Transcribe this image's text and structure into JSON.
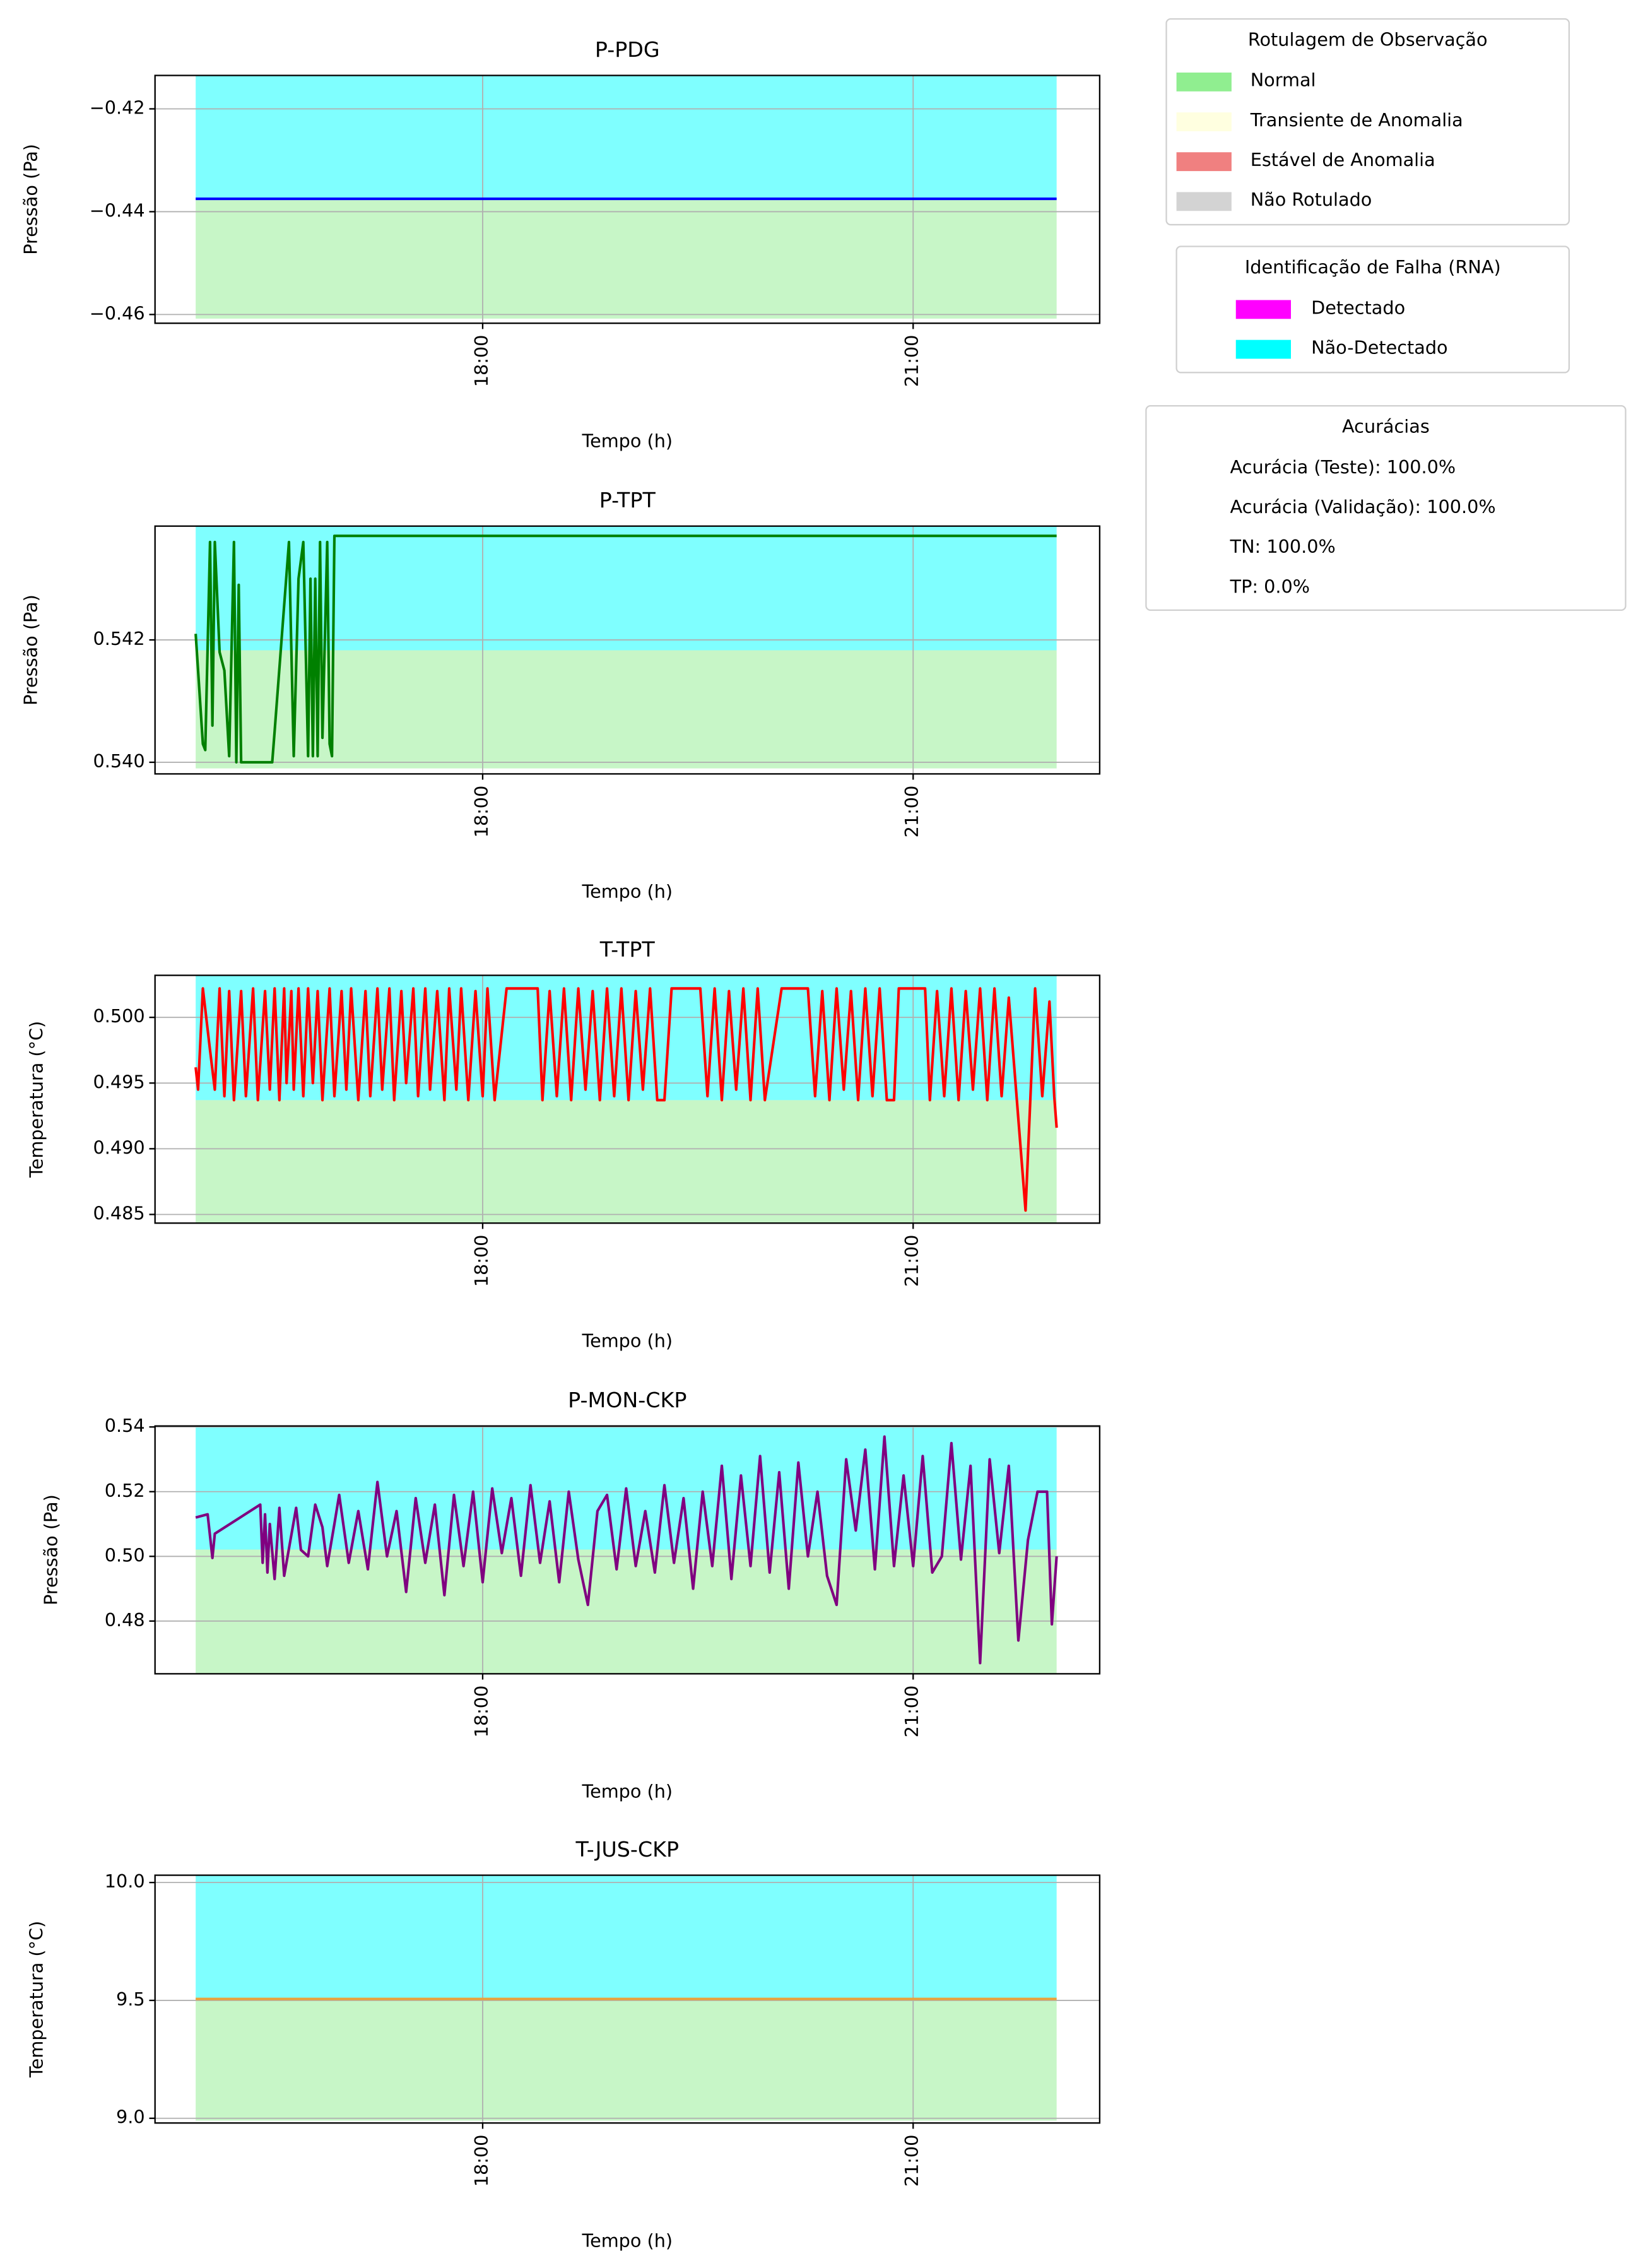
{
  "chart_data": [
    {
      "type": "line",
      "title": "P-PDG",
      "xlabel": "Tempo (h)",
      "ylabel": "Pressão (Pa)",
      "xlim": [
        "15:43",
        "22:18"
      ],
      "xticks": [
        "18:00",
        "21:00"
      ],
      "ylim": [
        -0.4617,
        -0.4135
      ],
      "yticks": [
        {
          "value": -0.46,
          "label": "−0.46"
        },
        {
          "value": -0.44,
          "label": "−0.44"
        },
        {
          "value": -0.42,
          "label": "−0.42"
        }
      ],
      "grid": true,
      "band_x": [
        "16:00",
        "22:00"
      ],
      "band_alpha": 0.5,
      "bands": [
        {
          "color": "#90ee90",
          "y": [
            -0.4608,
            -0.4375
          ]
        },
        {
          "color": "#00ffff",
          "y": [
            -0.4375,
            -0.4135
          ]
        }
      ],
      "series": [
        {
          "color": "#0000ff",
          "x": [
            "16:00",
            "22:00"
          ],
          "values": [
            -0.4375,
            -0.4375
          ]
        }
      ]
    },
    {
      "type": "line",
      "title": "P-TPT",
      "xlabel": "Tempo (h)",
      "ylabel": "Pressão (Pa)",
      "xlim": [
        "15:43",
        "22:18"
      ],
      "xticks": [
        "18:00",
        "21:00"
      ],
      "ylim": [
        0.53981,
        0.54386
      ],
      "yticks": [
        {
          "value": 0.54,
          "label": "0.540"
        },
        0.542
      ],
      "grid": true,
      "band_x": [
        "16:00",
        "22:00"
      ],
      "band_alpha": 0.5,
      "bands": [
        {
          "color": "#90ee90",
          "y": [
            0.5399,
            0.54183
          ]
        },
        {
          "color": "#00ffff",
          "y": [
            0.54183,
            0.54386
          ]
        }
      ],
      "series": [
        {
          "color": "#008000",
          "x": [
            "16:00",
            "16:03",
            "16:04",
            "16:06",
            "16:07",
            "16:08",
            "16:10",
            "16:12",
            "16:14",
            "16:16",
            "16:17",
            "16:18",
            "16:19",
            "16:25",
            "16:32",
            "16:33",
            "16:39",
            "16:41",
            "16:43",
            "16:45",
            "16:47",
            "16:48",
            "16:49",
            "16:50",
            "16:51",
            "16:52",
            "16:53",
            "16:55",
            "16:56",
            "16:57",
            "16:58",
            "22:00"
          ],
          "values": [
            0.5421,
            0.5403,
            0.5402,
            0.5436,
            0.5406,
            0.5436,
            0.5418,
            0.5415,
            0.5401,
            0.5436,
            0.54,
            0.5429,
            0.54,
            0.54,
            0.54,
            0.5405,
            0.5436,
            0.5401,
            0.543,
            0.5436,
            0.5401,
            0.543,
            0.5401,
            0.543,
            0.5401,
            0.5436,
            0.5404,
            0.5436,
            0.5403,
            0.5401,
            0.5437,
            0.5437
          ]
        }
      ]
    },
    {
      "type": "line",
      "title": "T-TPT",
      "xlabel": "Tempo (h)",
      "ylabel": "Temperatura (°C)",
      "xlim": [
        "15:43",
        "22:18"
      ],
      "xticks": [
        "18:00",
        "21:00"
      ],
      "ylim": [
        0.48434,
        0.5032
      ],
      "yticks": [
        0.485,
        {
          "value": 0.49,
          "label": "0.490"
        },
        0.495,
        {
          "value": 0.5,
          "label": "0.500"
        }
      ],
      "grid": true,
      "band_x": [
        "16:00",
        "22:00"
      ],
      "band_alpha": 0.5,
      "bands": [
        {
          "color": "#90ee90",
          "y": [
            0.48434,
            0.4937
          ]
        },
        {
          "color": "#00ffff",
          "y": [
            0.4937,
            0.5032
          ]
        }
      ],
      "series": [
        {
          "color": "#ff0000",
          "x": [
            "16:00",
            "16:01",
            "16:03",
            "16:06",
            "16:08",
            "16:10",
            "16:12",
            "16:14",
            "16:16",
            "16:19",
            "16:21",
            "16:24",
            "16:26",
            "16:29",
            "16:31",
            "16:33",
            "16:35",
            "16:37",
            "16:38",
            "16:40",
            "16:41",
            "16:43",
            "16:45",
            "16:47",
            "16:49",
            "16:51",
            "16:53",
            "16:56",
            "16:58",
            "17:01",
            "17:03",
            "17:05",
            "17:08",
            "17:11",
            "17:13",
            "17:16",
            "17:18",
            "17:21",
            "17:23",
            "17:26",
            "17:28",
            "17:31",
            "17:33",
            "17:36",
            "17:38",
            "17:41",
            "17:44",
            "17:46",
            "17:49",
            "17:51",
            "17:54",
            "17:57",
            "18:00",
            "18:02",
            "18:05",
            "18:10",
            "18:23",
            "18:25",
            "18:28",
            "18:31",
            "18:34",
            "18:37",
            "18:40",
            "18:43",
            "18:46",
            "18:49",
            "18:52",
            "18:55",
            "18:58",
            "19:01",
            "19:04",
            "19:07",
            "19:10",
            "19:13",
            "19:16",
            "19:19",
            "19:31",
            "19:34",
            "19:37",
            "19:40",
            "19:43",
            "19:46",
            "19:49",
            "19:52",
            "19:55",
            "19:58",
            "20:05",
            "20:16",
            "20:19",
            "20:22",
            "20:25",
            "20:28",
            "20:31",
            "20:34",
            "20:37",
            "20:40",
            "20:43",
            "20:46",
            "20:49",
            "20:52",
            "20:54",
            "21:05",
            "21:07",
            "21:10",
            "21:13",
            "21:16",
            "21:19",
            "21:22",
            "21:25",
            "21:28",
            "21:31",
            "21:34",
            "21:37",
            "21:40",
            "21:47",
            "21:51",
            "21:54",
            "21:57",
            "21:59",
            "22:00"
          ],
          "values": [
            0.4962,
            0.4945,
            0.5022,
            0.4975,
            0.4945,
            0.5022,
            0.494,
            0.502,
            0.4937,
            0.502,
            0.494,
            0.5022,
            0.4937,
            0.502,
            0.4945,
            0.5022,
            0.4937,
            0.5022,
            0.495,
            0.502,
            0.4945,
            0.5022,
            0.494,
            0.5022,
            0.495,
            0.502,
            0.4937,
            0.5022,
            0.494,
            0.502,
            0.4945,
            0.5022,
            0.4937,
            0.502,
            0.494,
            0.5022,
            0.4945,
            0.5022,
            0.4937,
            0.502,
            0.495,
            0.5022,
            0.494,
            0.5022,
            0.4945,
            0.502,
            0.4937,
            0.5022,
            0.4945,
            0.5022,
            0.4937,
            0.502,
            0.494,
            0.5022,
            0.4937,
            0.5022,
            0.5022,
            0.4937,
            0.502,
            0.494,
            0.5022,
            0.4937,
            0.5022,
            0.4945,
            0.502,
            0.4937,
            0.5022,
            0.494,
            0.5022,
            0.4937,
            0.502,
            0.4945,
            0.5022,
            0.4937,
            0.4937,
            0.5022,
            0.5022,
            0.494,
            0.5022,
            0.4937,
            0.502,
            0.4945,
            0.5022,
            0.4937,
            0.5022,
            0.4937,
            0.5022,
            0.5022,
            0.494,
            0.502,
            0.4937,
            0.5022,
            0.4945,
            0.502,
            0.4937,
            0.5022,
            0.494,
            0.5022,
            0.4937,
            0.4937,
            0.5022,
            0.5022,
            0.4937,
            0.502,
            0.494,
            0.5022,
            0.4937,
            0.502,
            0.4945,
            0.5022,
            0.4937,
            0.5022,
            0.494,
            0.5015,
            0.4853,
            0.5022,
            0.494,
            0.5012,
            0.494,
            0.4916
          ]
        }
      ]
    },
    {
      "type": "line",
      "title": "P-MON-CKP",
      "xlabel": "Tempo (h)",
      "ylabel": "Pressão (Pa)",
      "xlim": [
        "15:43",
        "22:18"
      ],
      "xticks": [
        "18:00",
        "21:00"
      ],
      "ylim": [
        0.4637,
        0.5403
      ],
      "yticks": [
        0.48,
        {
          "value": 0.5,
          "label": "0.50"
        },
        0.52,
        0.54
      ],
      "grid": true,
      "band_x": [
        "16:00",
        "22:00"
      ],
      "band_alpha": 0.5,
      "bands": [
        {
          "color": "#90ee90",
          "y": [
            0.4637,
            0.5021
          ]
        },
        {
          "color": "#00ffff",
          "y": [
            0.5021,
            0.5403
          ]
        }
      ],
      "series": [
        {
          "color": "#800080",
          "x": [
            "16:00",
            "16:05",
            "16:07",
            "16:08",
            "16:27",
            "16:28",
            "16:29",
            "16:30",
            "16:31",
            "16:33",
            "16:35",
            "16:37",
            "16:42",
            "16:44",
            "16:47",
            "16:50",
            "16:53",
            "16:55",
            "16:58",
            "17:00",
            "17:04",
            "17:08",
            "17:12",
            "17:16",
            "17:20",
            "17:24",
            "17:28",
            "17:32",
            "17:36",
            "17:40",
            "17:44",
            "17:48",
            "17:52",
            "17:56",
            "18:00",
            "18:04",
            "18:08",
            "18:12",
            "18:16",
            "18:20",
            "18:24",
            "18:28",
            "18:32",
            "18:36",
            "18:40",
            "18:44",
            "18:48",
            "18:52",
            "18:56",
            "19:00",
            "19:04",
            "19:08",
            "19:12",
            "19:16",
            "19:20",
            "19:24",
            "19:28",
            "19:32",
            "19:36",
            "19:40",
            "19:44",
            "19:48",
            "19:52",
            "19:56",
            "20:00",
            "20:04",
            "20:08",
            "20:12",
            "20:16",
            "20:20",
            "20:24",
            "20:28",
            "20:32",
            "20:36",
            "20:40",
            "20:44",
            "20:48",
            "20:52",
            "20:56",
            "21:00",
            "21:04",
            "21:08",
            "21:12",
            "21:16",
            "21:20",
            "21:24",
            "21:28",
            "21:32",
            "21:36",
            "21:40",
            "21:44",
            "21:48",
            "21:52",
            "21:56",
            "21:58",
            "22:00"
          ],
          "values": [
            0.512,
            0.513,
            0.4995,
            0.507,
            0.516,
            0.498,
            0.513,
            0.495,
            0.51,
            0.493,
            0.515,
            0.494,
            0.515,
            0.502,
            0.5,
            0.516,
            0.509,
            0.497,
            0.51,
            0.519,
            0.498,
            0.514,
            0.496,
            0.523,
            0.5,
            0.514,
            0.489,
            0.518,
            0.498,
            0.516,
            0.488,
            0.519,
            0.497,
            0.52,
            0.492,
            0.521,
            0.501,
            0.518,
            0.494,
            0.522,
            0.498,
            0.517,
            0.492,
            0.52,
            0.499,
            0.485,
            0.514,
            0.519,
            0.496,
            0.521,
            0.497,
            0.514,
            0.495,
            0.522,
            0.498,
            0.518,
            0.49,
            0.52,
            0.497,
            0.528,
            0.493,
            0.525,
            0.497,
            0.531,
            0.495,
            0.526,
            0.49,
            0.529,
            0.5,
            0.52,
            0.494,
            0.485,
            0.53,
            0.508,
            0.533,
            0.496,
            0.537,
            0.497,
            0.525,
            0.497,
            0.531,
            0.495,
            0.5,
            0.535,
            0.499,
            0.528,
            0.467,
            0.53,
            0.501,
            0.528,
            0.474,
            0.505,
            0.52,
            0.52,
            0.479,
            0.5
          ]
        }
      ]
    },
    {
      "type": "line",
      "title": "T-JUS-CKP",
      "xlabel": "Tempo (h)",
      "ylabel": "Temperatura (°C)",
      "xlim": [
        "15:43",
        "22:18"
      ],
      "xticks": [
        "18:00",
        "21:00"
      ],
      "ylim": [
        8.98,
        10.031
      ],
      "yticks": [
        {
          "value": 9,
          "label": "9.0"
        },
        9.5,
        {
          "value": 10,
          "label": "10.0"
        }
      ],
      "grid": true,
      "band_x": [
        "16:00",
        "22:00"
      ],
      "band_alpha": 0.5,
      "bands": [
        {
          "color": "#90ee90",
          "y": [
            8.99,
            9.506
          ]
        },
        {
          "color": "#00ffff",
          "y": [
            9.506,
            10.031
          ]
        }
      ],
      "series": [
        {
          "color": "#e8a33d",
          "x": [
            "16:00",
            "22:00"
          ],
          "values": [
            9.506,
            9.506
          ]
        }
      ]
    }
  ],
  "legends": [
    {
      "title": "Rotulagem de Observação",
      "items": [
        {
          "label": "Normal",
          "color": "#90ee90"
        },
        {
          "label": "Transiente de Anomalia",
          "color": "#ffffe0"
        },
        {
          "label": "Estável de Anomalia",
          "color": "#f08080"
        },
        {
          "label": "Não Rotulado",
          "color": "#d3d3d3"
        }
      ]
    },
    {
      "title": "Identificação de Falha (RNA)",
      "items": [
        {
          "label": "Detectado",
          "color": "#ff00ff"
        },
        {
          "label": "Não-Detectado",
          "color": "#00ffff"
        }
      ]
    },
    {
      "title": "Acurácias",
      "items": [
        "Acurácia (Teste): 100.0%",
        "Acurácia (Validação): 100.0%",
        "TN: 100.0%",
        "TP: 0.0%"
      ]
    }
  ]
}
